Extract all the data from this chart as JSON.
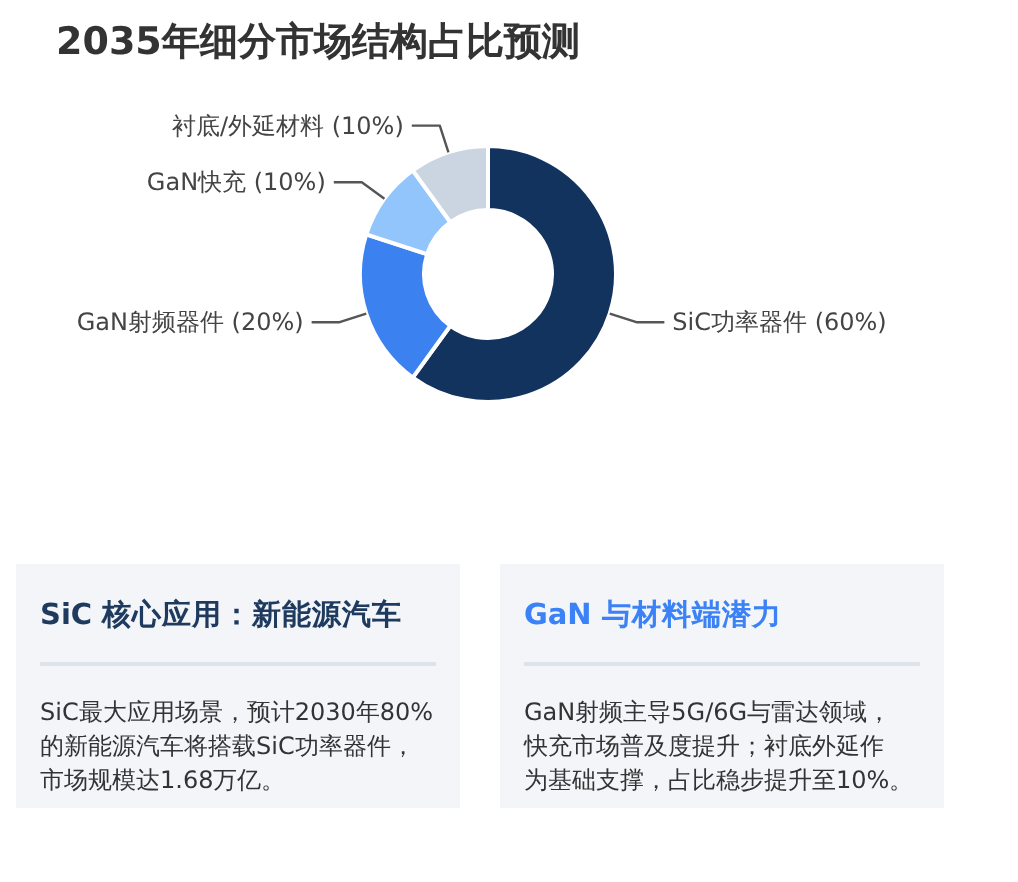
{
  "chart_data": [
    {
      "type": "donut",
      "title": "2035年细分市场结构占比预测",
      "categories": [
        "SiC功率器件 (60%)",
        "GaN射频器件 (20%)",
        "GaN快充 (10%)",
        "衬底/外延材料 (10%)"
      ],
      "values": [
        60,
        20,
        10,
        10
      ],
      "colors": [
        "#13335f",
        "#3b82f0",
        "#93c5fd",
        "#cbd5e1"
      ]
    },
    {
      "type": "other",
      "title": "SiC 核心应用：新能源汽车",
      "annotations": [
        "SiC最大应用场景，预计2030年80%",
        "的新能源汽车将搭载SiC功率器件，",
        "市场规模达1.68万亿。"
      ]
    },
    {
      "type": "other",
      "title": "GaN 与材料端潜力",
      "annotations": [
        "GaN射频主导5G/6G与雷达领域，",
        "快充市场普及度提升；衬底外延作",
        "为基础支撑，占比稳步提升至10%。"
      ]
    }
  ]
}
